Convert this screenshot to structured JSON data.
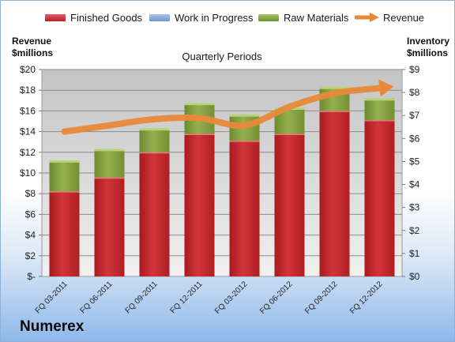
{
  "chart_data": {
    "type": "bar",
    "title": "Quarterly Periods",
    "categories": [
      "FQ 03-2011",
      "FQ 06-2011",
      "FQ 09-2011",
      "FQ 12-2011",
      "FQ 03-2012",
      "FQ 06-2012",
      "FQ 09-2012",
      "FQ 12-2012"
    ],
    "series": [
      {
        "name": "Finished Goods",
        "axis": "right",
        "values": [
          3.7,
          4.3,
          5.4,
          6.2,
          5.9,
          6.2,
          7.2,
          6.8
        ],
        "color": "#c0262b"
      },
      {
        "name": "Work in Progress",
        "axis": "right",
        "values": [
          0,
          0,
          0,
          0,
          0,
          0,
          0,
          0
        ],
        "color": "#7a9fd0"
      },
      {
        "name": "Raw Materials",
        "axis": "right",
        "values": [
          1.3,
          1.2,
          1.0,
          1.3,
          1.1,
          1.1,
          1.0,
          0.9
        ],
        "color": "#7e9b3c"
      },
      {
        "name": "Revenue",
        "axis": "left",
        "type": "line",
        "values": [
          14.0,
          14.6,
          15.2,
          15.3,
          14.6,
          16.4,
          17.7,
          18.2
        ],
        "color": "#e8893a"
      }
    ],
    "ylabel": "Revenue $millions",
    "y2label": "Inventory $millions",
    "yticks": [
      "$-",
      "$2",
      "$4",
      "$6",
      "$8",
      "$10",
      "$12",
      "$14",
      "$16",
      "$18",
      "$20"
    ],
    "y2ticks": [
      "$0",
      "$1",
      "$2",
      "$3",
      "$4",
      "$5",
      "$6",
      "$7",
      "$8",
      "$9"
    ],
    "ylim": [
      0,
      20
    ],
    "y2lim": [
      0,
      9
    ],
    "grid": true,
    "legend": "top"
  },
  "left_axis_caption": [
    "Revenue",
    "$millions"
  ],
  "right_axis_caption": [
    "Inventory",
    "$millions"
  ],
  "company": "Numerex"
}
